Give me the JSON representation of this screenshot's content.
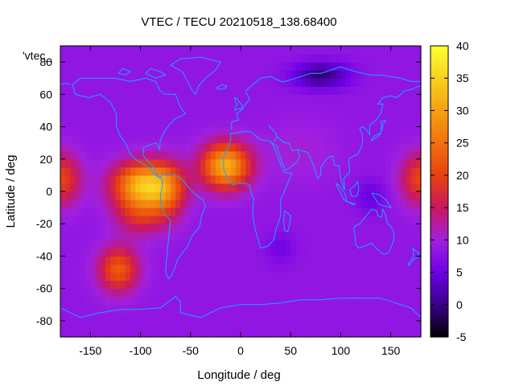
{
  "chart_data": {
    "type": "heatmap",
    "title": "VTEC / TECU 20210518_138.68400",
    "xlabel": "Longitude / deg",
    "ylabel": "Latitude / deg",
    "legend_entry": "'vtec_",
    "x_range": [
      -180,
      180
    ],
    "y_range": [
      -90,
      90
    ],
    "x_ticks": [
      -150,
      -100,
      -50,
      0,
      50,
      100,
      150
    ],
    "y_ticks": [
      -80,
      -60,
      -40,
      -20,
      0,
      20,
      40,
      60,
      80
    ],
    "color_range": [
      -5,
      40
    ],
    "colorbar_ticks": [
      -5,
      0,
      5,
      10,
      15,
      20,
      25,
      30,
      35,
      40
    ],
    "palette": [
      "#000000",
      "#3a0088",
      "#6e00e6",
      "#a020e0",
      "#c81860",
      "#e84010",
      "#f07010",
      "#f5a010",
      "#f8d020",
      "#ffff30"
    ],
    "background_value": 8.5,
    "coastline_color": "#1aa3ff",
    "blobs": [
      {
        "lon": -96,
        "lat": 4,
        "amp": 25,
        "slon": 30,
        "slat": 14
      },
      {
        "lon": -72,
        "lat": 0,
        "amp": 8,
        "slon": 18,
        "slat": 18
      },
      {
        "lon": -100,
        "lat": -15,
        "amp": 8,
        "slon": 25,
        "slat": 12
      },
      {
        "lon": -15,
        "lat": 16,
        "amp": 23,
        "slon": 24,
        "slat": 14
      },
      {
        "lon": -122,
        "lat": -48,
        "amp": 14,
        "slon": 20,
        "slat": 14
      },
      {
        "lon": -180,
        "lat": 8,
        "amp": 12,
        "slon": 20,
        "slat": 16
      },
      {
        "lon": 180,
        "lat": 8,
        "amp": 12,
        "slon": 20,
        "slat": 16
      },
      {
        "lon": 80,
        "lat": 72,
        "amp": -9,
        "slon": 28,
        "slat": 8
      },
      {
        "lon": 130,
        "lat": -3,
        "amp": -4,
        "slon": 15,
        "slat": 10
      },
      {
        "lon": 40,
        "lat": -35,
        "amp": -3,
        "slon": 15,
        "slat": 10
      },
      {
        "lon": 60,
        "lat": 25,
        "amp": 2,
        "slon": 40,
        "slat": 20
      }
    ]
  }
}
